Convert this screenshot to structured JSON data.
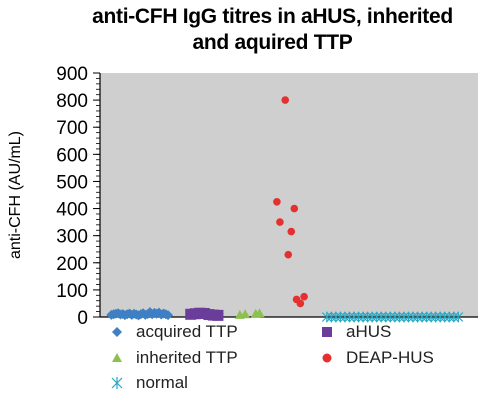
{
  "chart_data": {
    "type": "scatter",
    "title_lines": [
      "anti-CFH IgG titres in aHUS, inherited",
      "and aquired TTP"
    ],
    "ylabel": "anti-CFH (AU/mL)",
    "xlabel": "",
    "ylim": [
      0,
      900
    ],
    "y_ticks": [
      0,
      100,
      200,
      300,
      400,
      500,
      600,
      700,
      800,
      900
    ],
    "y_minor_step": 20,
    "grid": false,
    "legend_position": "bottom",
    "series": [
      {
        "name": "acquired TTP",
        "marker": "diamond",
        "color": "#3f7fc4",
        "points": [
          [
            1.5,
            8
          ],
          [
            1.8,
            10
          ],
          [
            2.1,
            12
          ],
          [
            2.4,
            14
          ],
          [
            2.7,
            9
          ],
          [
            3.0,
            11
          ],
          [
            3.3,
            7
          ],
          [
            3.6,
            10
          ],
          [
            3.9,
            13
          ],
          [
            4.2,
            8
          ],
          [
            4.5,
            12
          ],
          [
            4.8,
            9
          ],
          [
            5.1,
            6
          ],
          [
            5.4,
            10
          ],
          [
            5.7,
            14
          ],
          [
            6.0,
            8
          ],
          [
            6.3,
            11
          ],
          [
            6.6,
            18
          ],
          [
            6.9,
            10
          ],
          [
            7.2,
            15
          ],
          [
            7.5,
            12
          ],
          [
            7.8,
            16
          ],
          [
            8.1,
            9
          ],
          [
            8.4,
            13
          ],
          [
            8.7,
            10
          ],
          [
            9.0,
            7
          ]
        ]
      },
      {
        "name": "aHUS",
        "marker": "square",
        "color": "#6a3d9a",
        "points": [
          [
            12.0,
            10
          ],
          [
            12.6,
            12
          ],
          [
            13.2,
            14
          ],
          [
            13.8,
            13
          ],
          [
            14.4,
            9
          ],
          [
            15.0,
            7
          ],
          [
            15.6,
            6
          ]
        ]
      },
      {
        "name": "inherited TTP",
        "marker": "triangle",
        "color": "#8cc152",
        "points": [
          [
            18.5,
            8
          ],
          [
            19.2,
            10
          ],
          [
            20.6,
            12
          ],
          [
            21.1,
            14
          ]
        ]
      },
      {
        "name": "DEAP-HUS",
        "marker": "circle",
        "color": "#e53030",
        "points": [
          [
            24.5,
            800
          ],
          [
            23.4,
            425
          ],
          [
            23.8,
            350
          ],
          [
            24.9,
            230
          ],
          [
            25.3,
            315
          ],
          [
            25.7,
            400
          ],
          [
            26.0,
            65
          ],
          [
            26.5,
            50
          ],
          [
            27.0,
            75
          ]
        ]
      },
      {
        "name": "normal",
        "marker": "star",
        "color": "#29a8c4",
        "points": [
          [
            30.0,
            0
          ],
          [
            30.6,
            0
          ],
          [
            31.2,
            0
          ],
          [
            31.8,
            0
          ],
          [
            32.4,
            0
          ],
          [
            33.0,
            0
          ],
          [
            33.6,
            0
          ],
          [
            34.2,
            0
          ],
          [
            34.8,
            0
          ],
          [
            35.4,
            0
          ],
          [
            36.0,
            0
          ],
          [
            36.6,
            0
          ],
          [
            37.2,
            0
          ],
          [
            37.8,
            0
          ],
          [
            38.4,
            0
          ],
          [
            39.0,
            0
          ],
          [
            39.6,
            0
          ],
          [
            40.2,
            0
          ],
          [
            40.8,
            0
          ],
          [
            41.4,
            0
          ],
          [
            42.0,
            0
          ],
          [
            42.6,
            0
          ],
          [
            43.2,
            0
          ],
          [
            43.8,
            0
          ],
          [
            44.4,
            0
          ],
          [
            45.0,
            0
          ],
          [
            45.6,
            0
          ],
          [
            46.2,
            0
          ],
          [
            46.8,
            0
          ],
          [
            47.4,
            0
          ]
        ]
      }
    ],
    "legend": [
      {
        "label": "acquired TTP",
        "marker": "diamond",
        "color": "#3f7fc4"
      },
      {
        "label": "aHUS",
        "marker": "square",
        "color": "#6a3d9a"
      },
      {
        "label": " inherited TTP",
        "marker": "triangle",
        "color": "#8cc152"
      },
      {
        "label": "DEAP-HUS",
        "marker": "circle",
        "color": "#e53030"
      },
      {
        "label": " normal",
        "marker": "star",
        "color": "#29a8c4"
      }
    ],
    "plot_background": "#cfcfcf"
  }
}
